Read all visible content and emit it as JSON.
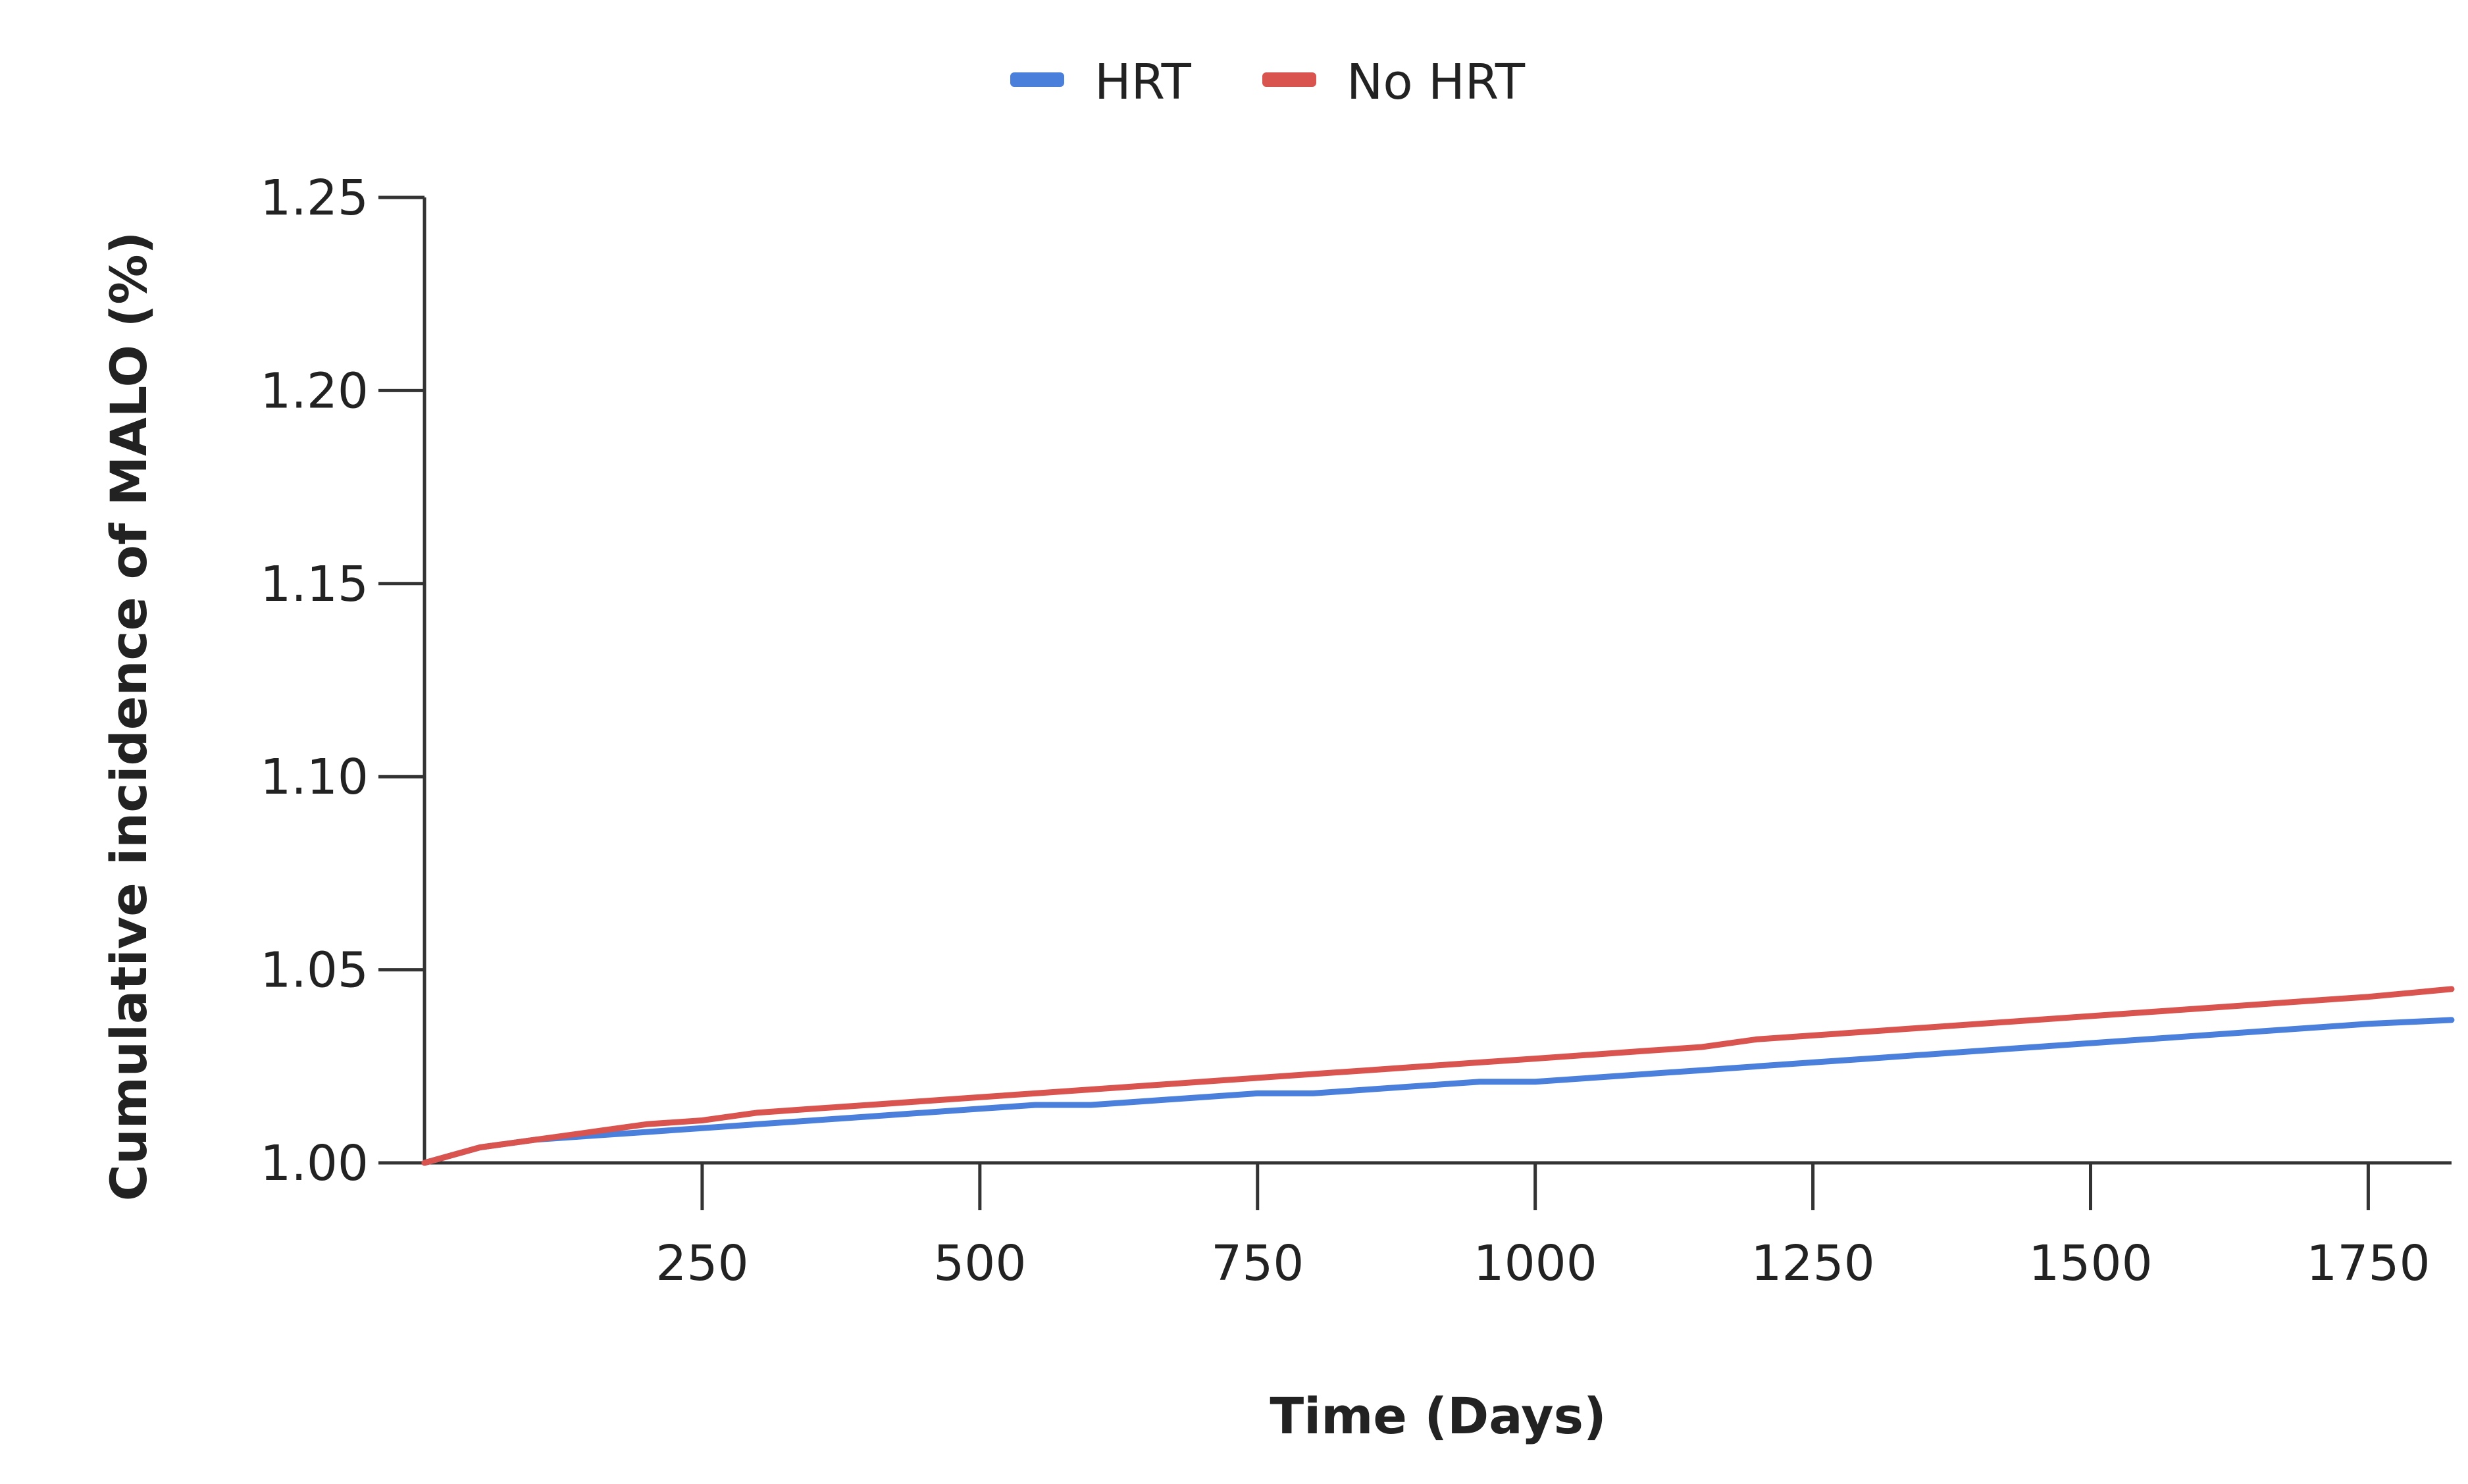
{
  "chart_data": {
    "type": "line",
    "title": "",
    "xlabel": "Time (Days)",
    "ylabel": "Cumulative incidence of MALO (%)",
    "xlim": [
      0,
      1825
    ],
    "ylim": [
      1.0,
      1.25
    ],
    "x_ticks": [
      250,
      500,
      750,
      1000,
      1250,
      1500,
      1750
    ],
    "y_ticks": [
      1.0,
      1.05,
      1.1,
      1.15,
      1.2,
      1.25
    ],
    "y_tick_labels": [
      "1.00",
      "1.05",
      "1.10",
      "1.15",
      "1.20",
      "1.25"
    ],
    "grid": false,
    "legend_position": "top-center",
    "series": [
      {
        "name": "HRT",
        "color": "#4b7fdc",
        "x": [
          0,
          50,
          100,
          150,
          200,
          250,
          300,
          350,
          400,
          450,
          500,
          550,
          600,
          650,
          700,
          750,
          800,
          850,
          900,
          950,
          1000,
          1050,
          1100,
          1150,
          1200,
          1250,
          1300,
          1350,
          1400,
          1450,
          1500,
          1550,
          1600,
          1650,
          1700,
          1750,
          1825
        ],
        "values": [
          1.0,
          1.004,
          1.006,
          1.007,
          1.008,
          1.009,
          1.01,
          1.011,
          1.012,
          1.013,
          1.014,
          1.015,
          1.015,
          1.016,
          1.017,
          1.018,
          1.018,
          1.019,
          1.02,
          1.021,
          1.021,
          1.022,
          1.023,
          1.024,
          1.025,
          1.026,
          1.027,
          1.028,
          1.029,
          1.03,
          1.031,
          1.032,
          1.033,
          1.034,
          1.035,
          1.036,
          1.037
        ]
      },
      {
        "name": "No HRT",
        "color": "#d9534f",
        "x": [
          0,
          50,
          100,
          150,
          200,
          250,
          300,
          350,
          400,
          450,
          500,
          550,
          600,
          650,
          700,
          750,
          800,
          850,
          900,
          950,
          1000,
          1050,
          1100,
          1150,
          1200,
          1250,
          1300,
          1350,
          1400,
          1450,
          1500,
          1550,
          1600,
          1650,
          1700,
          1750,
          1825
        ],
        "values": [
          1.0,
          1.004,
          1.006,
          1.008,
          1.01,
          1.011,
          1.013,
          1.014,
          1.015,
          1.016,
          1.017,
          1.018,
          1.019,
          1.02,
          1.021,
          1.022,
          1.023,
          1.024,
          1.025,
          1.026,
          1.027,
          1.028,
          1.029,
          1.03,
          1.032,
          1.033,
          1.034,
          1.035,
          1.036,
          1.037,
          1.038,
          1.039,
          1.04,
          1.041,
          1.042,
          1.043,
          1.045
        ]
      }
    ]
  }
}
